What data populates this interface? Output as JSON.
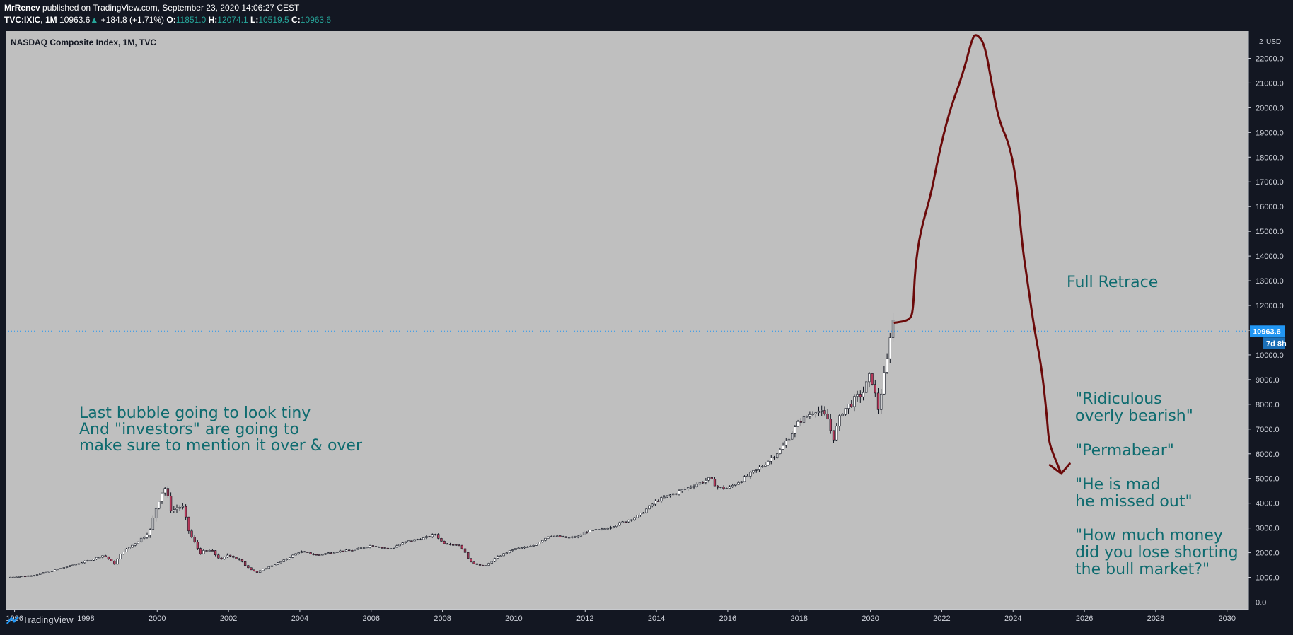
{
  "header": {
    "author": "MrRenev",
    "published": "published on TradingView.com, September 23, 2020 14:06:27 CEST",
    "symbol": "TVC:IXIC, 1M",
    "last": "10963.6",
    "change": "+184.8 (+1.71%)",
    "o_label": "O:",
    "o": "11851.0",
    "h_label": "H:",
    "h": "12074.1",
    "l_label": "L:",
    "l": "10519.5",
    "c_label": "C:",
    "c": "10963.6"
  },
  "chart_data": {
    "type": "candlestick",
    "title": "NASDAQ Composite Index, 1M, TVC",
    "currency": "USD",
    "y_ticks": [
      0,
      1000,
      2000,
      3000,
      4000,
      5000,
      6000,
      7000,
      8000,
      9000,
      10000,
      11000,
      12000,
      13000,
      14000,
      15000,
      16000,
      17000,
      18000,
      19000,
      20000,
      21000,
      22000
    ],
    "y_tick_labels": [
      "0.0",
      "1000.0",
      "2000.0",
      "3000.0",
      "4000.0",
      "5000.0",
      "6000.0",
      "7000.0",
      "8000.0",
      "9000.0",
      "10000.0",
      "11000.0",
      "12000.0",
      "13000.0",
      "14000.0",
      "15000.0",
      "16000.0",
      "17000.0",
      "18000.0",
      "19000.0",
      "20000.0",
      "21000.0",
      "22000.0"
    ],
    "y_top_label": "2",
    "x_ticks": [
      "1996",
      "1998",
      "2000",
      "2002",
      "2004",
      "2006",
      "2008",
      "2010",
      "2012",
      "2014",
      "2016",
      "2018",
      "2020",
      "2022",
      "2024",
      "2026",
      "2028",
      "2030"
    ],
    "xlim": [
      1995.75,
      2030.6
    ],
    "ylim": [
      -300,
      23100
    ],
    "last_price": 10963.6,
    "last_price_label": "10963.6",
    "countdown_label": "7d 8h",
    "price_path": [
      [
        1995.8,
        1000
      ],
      [
        1996.5,
        1080
      ],
      [
        1997.0,
        1250
      ],
      [
        1997.5,
        1450
      ],
      [
        1998.0,
        1650
      ],
      [
        1998.5,
        1900
      ],
      [
        1998.8,
        1550
      ],
      [
        1999.0,
        2000
      ],
      [
        1999.5,
        2500
      ],
      [
        1999.8,
        2900
      ],
      [
        2000.0,
        4000
      ],
      [
        2000.2,
        4700
      ],
      [
        2000.4,
        3700
      ],
      [
        2000.7,
        3900
      ],
      [
        2000.9,
        2800
      ],
      [
        2001.2,
        2000
      ],
      [
        2001.5,
        2100
      ],
      [
        2001.8,
        1700
      ],
      [
        2002.0,
        1950
      ],
      [
        2002.3,
        1700
      ],
      [
        2002.6,
        1350
      ],
      [
        2002.8,
        1200
      ],
      [
        2003.0,
        1350
      ],
      [
        2003.5,
        1650
      ],
      [
        2004.0,
        2050
      ],
      [
        2004.5,
        1900
      ],
      [
        2005.0,
        2050
      ],
      [
        2005.5,
        2100
      ],
      [
        2006.0,
        2300
      ],
      [
        2006.5,
        2150
      ],
      [
        2007.0,
        2450
      ],
      [
        2007.5,
        2600
      ],
      [
        2007.8,
        2750
      ],
      [
        2008.0,
        2400
      ],
      [
        2008.5,
        2300
      ],
      [
        2008.8,
        1600
      ],
      [
        2009.2,
        1450
      ],
      [
        2009.5,
        1800
      ],
      [
        2010.0,
        2150
      ],
      [
        2010.5,
        2250
      ],
      [
        2011.0,
        2700
      ],
      [
        2011.5,
        2600
      ],
      [
        2011.8,
        2650
      ],
      [
        2012.0,
        2850
      ],
      [
        2012.5,
        2950
      ],
      [
        2013.0,
        3200
      ],
      [
        2013.5,
        3500
      ],
      [
        2014.0,
        4100
      ],
      [
        2014.5,
        4400
      ],
      [
        2015.0,
        4700
      ],
      [
        2015.5,
        5000
      ],
      [
        2015.7,
        4650
      ],
      [
        2016.0,
        4600
      ],
      [
        2016.5,
        5050
      ],
      [
        2017.0,
        5550
      ],
      [
        2017.5,
        6200
      ],
      [
        2018.0,
        7300
      ],
      [
        2018.5,
        7800
      ],
      [
        2018.8,
        7400
      ],
      [
        2018.95,
        6600
      ],
      [
        2019.2,
        7700
      ],
      [
        2019.5,
        8100
      ],
      [
        2019.8,
        8500
      ],
      [
        2020.0,
        9200
      ],
      [
        2020.1,
        8700
      ],
      [
        2020.2,
        7700
      ],
      [
        2020.35,
        8900
      ],
      [
        2020.5,
        10000
      ],
      [
        2020.6,
        11700
      ],
      [
        2020.68,
        10963.6
      ]
    ],
    "projection_path": [
      [
        2020.68,
        11300
      ],
      [
        2021.1,
        11400
      ],
      [
        2021.2,
        11800
      ],
      [
        2021.25,
        13500
      ],
      [
        2021.4,
        15000
      ],
      [
        2021.7,
        16500
      ],
      [
        2021.9,
        18000
      ],
      [
        2022.2,
        19800
      ],
      [
        2022.6,
        21400
      ],
      [
        2022.85,
        22800
      ],
      [
        2022.97,
        23000
      ],
      [
        2023.2,
        22600
      ],
      [
        2023.4,
        21000
      ],
      [
        2023.6,
        19500
      ],
      [
        2023.9,
        18500
      ],
      [
        2024.1,
        17000
      ],
      [
        2024.25,
        14500
      ],
      [
        2024.4,
        13000
      ],
      [
        2024.6,
        11000
      ],
      [
        2024.8,
        9500
      ],
      [
        2024.95,
        7500
      ],
      [
        2025.0,
        6500
      ],
      [
        2025.15,
        5900
      ],
      [
        2025.35,
        5200
      ]
    ],
    "annotations": [
      {
        "id": "left",
        "lines": [
          "Last bubble going to look tiny",
          "And \"investors\" are going to",
          "make sure to mention it over & over"
        ]
      },
      {
        "id": "full",
        "lines": [
          "Full Retrace"
        ]
      },
      {
        "id": "r1",
        "lines": [
          "\"Ridiculous",
          "overly bearish\""
        ]
      },
      {
        "id": "r2",
        "lines": [
          "\"Permabear\""
        ]
      },
      {
        "id": "r3",
        "lines": [
          "\"He is mad",
          "he missed out\""
        ]
      },
      {
        "id": "r4",
        "lines": [
          "\"How much money",
          "did you lose shorting",
          "the bull market?\""
        ]
      }
    ],
    "colors": {
      "background": "#131722",
      "plot": "#bfbfbf",
      "candle_up": "#ffffff",
      "candle_down": "#b7395a",
      "annotation_text": "#0e6b6f",
      "projection": "#6b0a0a",
      "price_badge": "#2196f3"
    }
  },
  "footer": {
    "brand": "TradingView",
    "logo_icon": "tradingview-logo-icon"
  }
}
